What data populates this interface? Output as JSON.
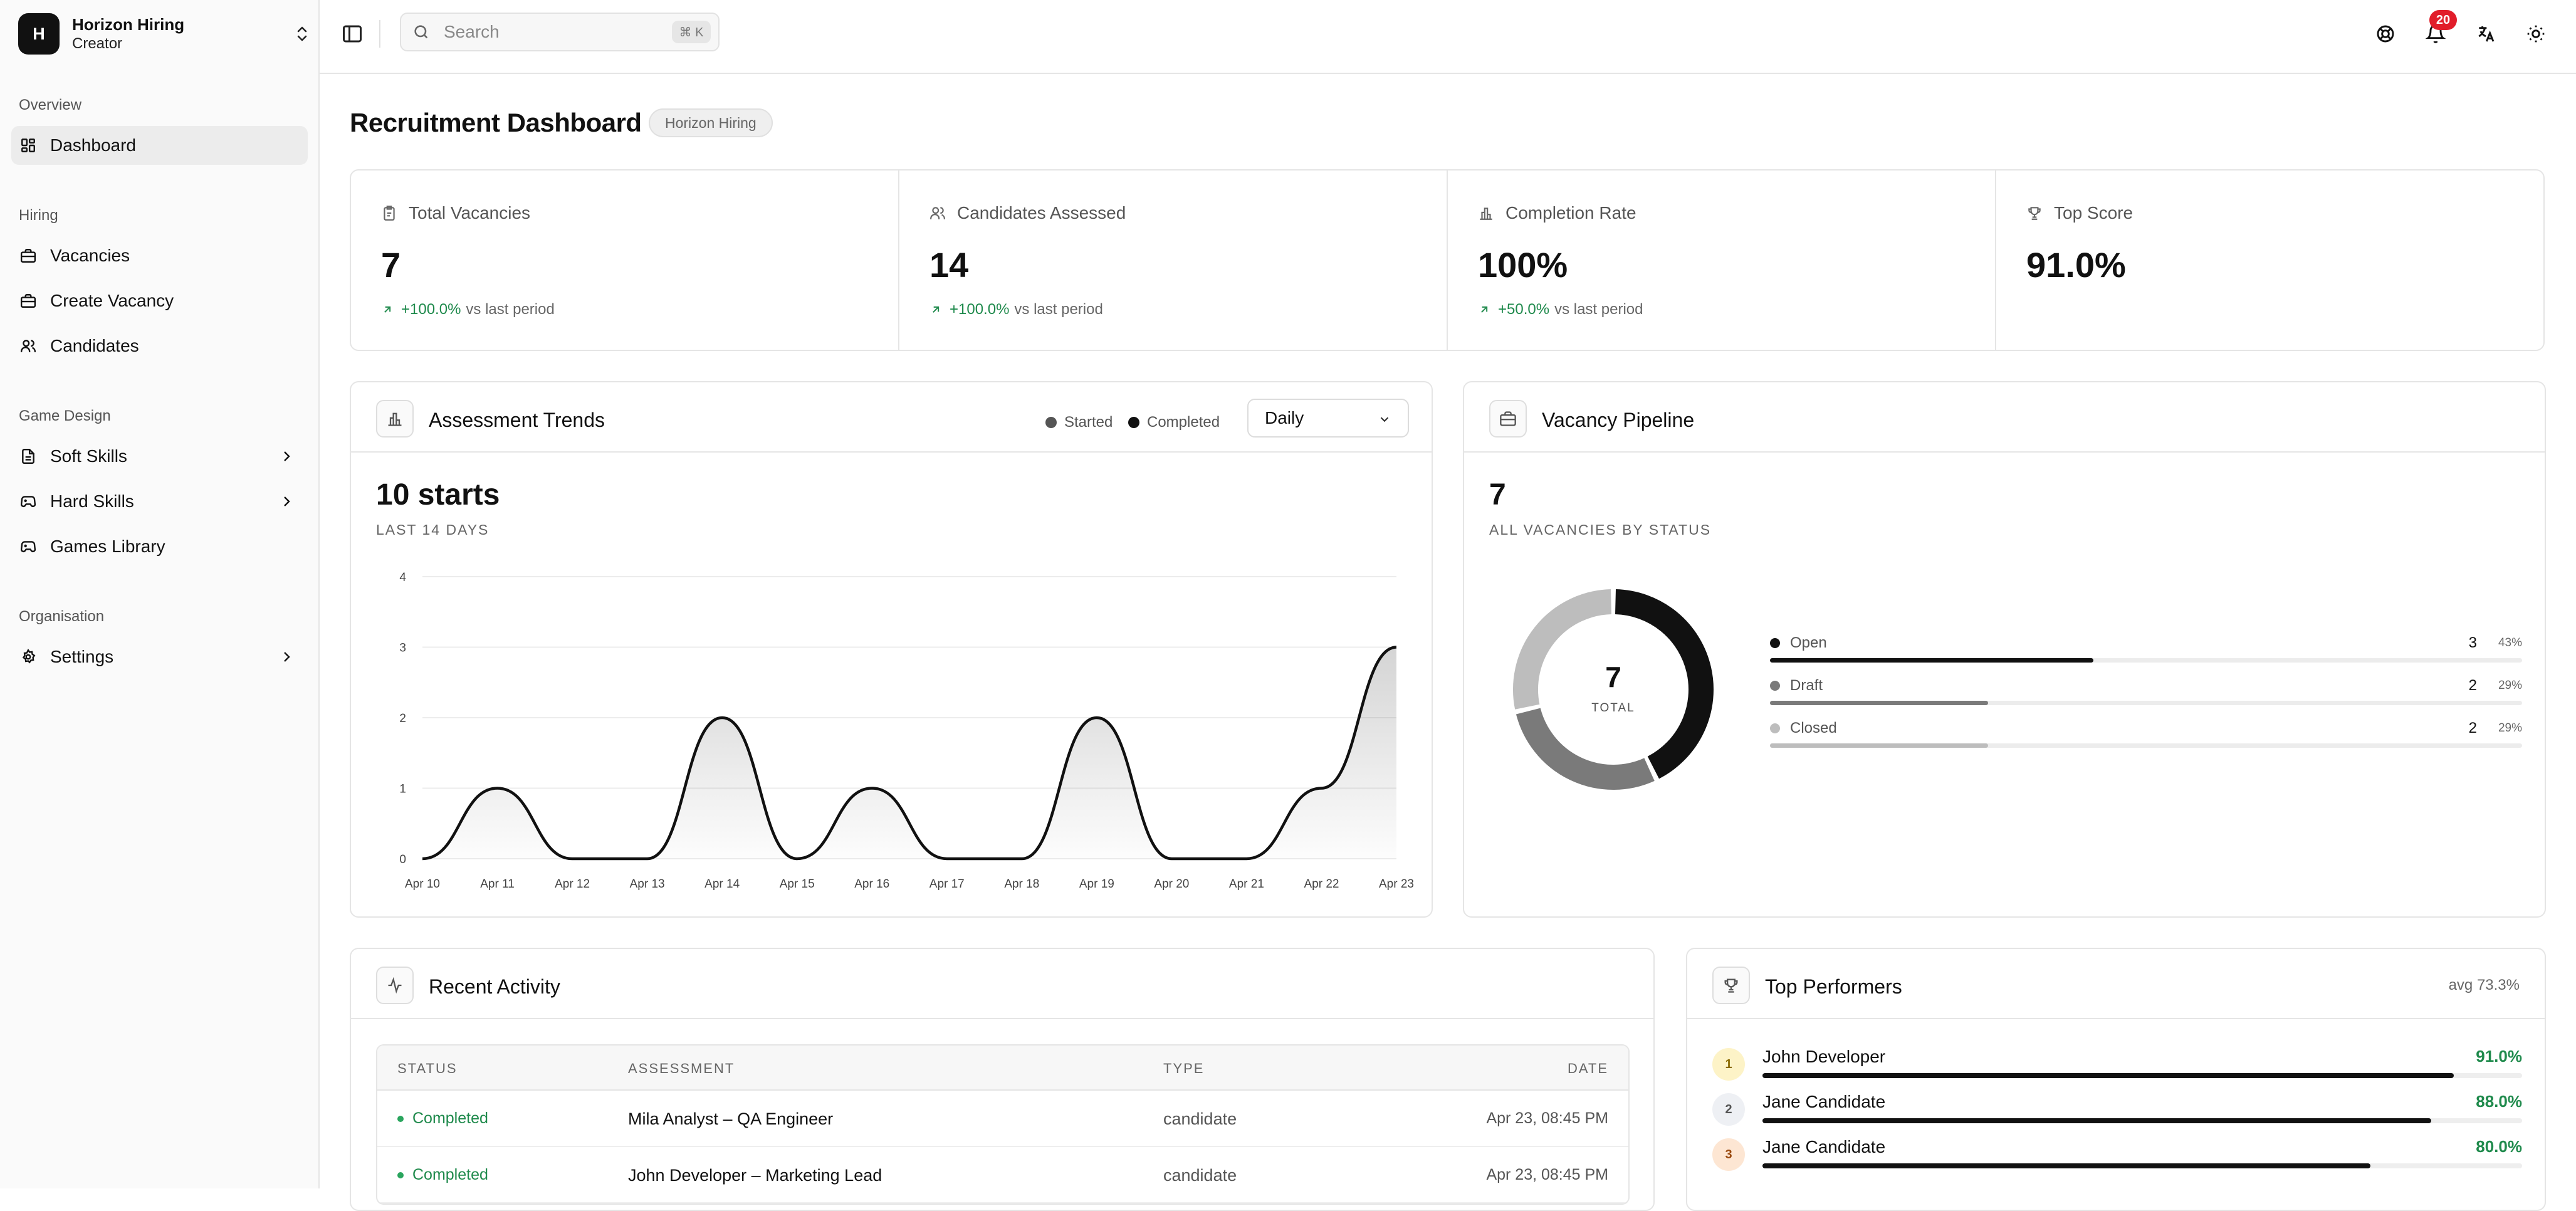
{
  "brand": {
    "initial": "H",
    "name": "Horizon Hiring",
    "role": "Creator"
  },
  "sidebar": {
    "groups": [
      {
        "label": "Overview"
      },
      {
        "label": "Hiring"
      },
      {
        "label": "Game Design"
      },
      {
        "label": "Organisation"
      }
    ],
    "items": [
      {
        "label": "Dashboard",
        "icon": "dashboard-icon",
        "active": true
      },
      {
        "label": "Vacancies",
        "icon": "briefcase-icon"
      },
      {
        "label": "Create Vacancy",
        "icon": "briefcase-plus-icon"
      },
      {
        "label": "Candidates",
        "icon": "users-icon"
      },
      {
        "label": "Soft Skills",
        "icon": "document-icon",
        "expandable": true
      },
      {
        "label": "Hard Skills",
        "icon": "gamepad-icon",
        "expandable": true
      },
      {
        "label": "Games Library",
        "icon": "gamepad-icon"
      },
      {
        "label": "Settings",
        "icon": "gear-icon",
        "expandable": true
      }
    ]
  },
  "topbar": {
    "search_placeholder": "Search",
    "search_shortcut": "⌘ K",
    "notification_count": "20"
  },
  "page": {
    "title": "Recruitment Dashboard",
    "org_tag": "Horizon Hiring"
  },
  "stats": [
    {
      "label": "Total Vacancies",
      "value": "7",
      "delta": "+100.0%",
      "delta_suffix": "vs last period",
      "icon": "clipboard-icon"
    },
    {
      "label": "Candidates Assessed",
      "value": "14",
      "delta": "+100.0%",
      "delta_suffix": "vs last period",
      "icon": "users-icon"
    },
    {
      "label": "Completion Rate",
      "value": "100%",
      "delta": "+50.0%",
      "delta_suffix": "vs last period",
      "icon": "bar-chart-icon"
    },
    {
      "label": "Top Score",
      "value": "91.0%",
      "delta": "",
      "delta_suffix": "",
      "icon": "trophy-icon"
    }
  ],
  "trends": {
    "title": "Assessment Trends",
    "legend": [
      "Started",
      "Completed"
    ],
    "legend_colors": [
      "#555555",
      "#111111"
    ],
    "period": "Daily",
    "headline": "10 starts",
    "caption": "LAST 14 DAYS"
  },
  "chart_data": {
    "type": "area",
    "x": [
      "Apr 10",
      "Apr 11",
      "Apr 12",
      "Apr 13",
      "Apr 14",
      "Apr 15",
      "Apr 16",
      "Apr 17",
      "Apr 18",
      "Apr 19",
      "Apr 20",
      "Apr 21",
      "Apr 22",
      "Apr 23"
    ],
    "series": [
      {
        "name": "Started",
        "values": [
          0,
          1,
          0,
          0,
          2,
          0,
          1,
          0,
          0,
          2,
          0,
          0,
          1,
          3
        ]
      }
    ],
    "ylim": [
      0,
      4
    ],
    "yticks": [
      0,
      1,
      2,
      3,
      4
    ],
    "grid": true
  },
  "pipeline": {
    "title": "Vacancy Pipeline",
    "headline": "7",
    "caption": "ALL VACANCIES BY STATUS",
    "total": "7",
    "total_label": "TOTAL",
    "statuses": [
      {
        "label": "Open",
        "count": "3",
        "pct": "43%",
        "fraction": 0.43,
        "color": "#111111"
      },
      {
        "label": "Draft",
        "count": "2",
        "pct": "29%",
        "fraction": 0.29,
        "color": "#7a7a7a"
      },
      {
        "label": "Closed",
        "count": "2",
        "pct": "29%",
        "fraction": 0.29,
        "color": "#bdbdbd"
      }
    ]
  },
  "activity": {
    "title": "Recent Activity",
    "columns": [
      "STATUS",
      "ASSESSMENT",
      "TYPE",
      "DATE"
    ],
    "rows": [
      {
        "status": "Completed",
        "assessment": "Mila Analyst – QA Engineer",
        "type": "candidate",
        "date": "Apr 23, 08:45 PM"
      },
      {
        "status": "Completed",
        "assessment": "John Developer – Marketing Lead",
        "type": "candidate",
        "date": "Apr 23, 08:45 PM"
      }
    ]
  },
  "performers": {
    "title": "Top Performers",
    "avg": "avg 73.3%",
    "list": [
      {
        "rank": "1",
        "name": "John Developer",
        "score": "91.0%",
        "fraction": 0.91,
        "rank_bg": "#fdf3c7",
        "rank_fg": "#8a6a00"
      },
      {
        "rank": "2",
        "name": "Jane Candidate",
        "score": "88.0%",
        "fraction": 0.88,
        "rank_bg": "#eef0f4",
        "rank_fg": "#555555"
      },
      {
        "rank": "3",
        "name": "Jane Candidate",
        "score": "80.0%",
        "fraction": 0.8,
        "rank_bg": "#fde6d3",
        "rank_fg": "#9a4a10"
      }
    ]
  }
}
